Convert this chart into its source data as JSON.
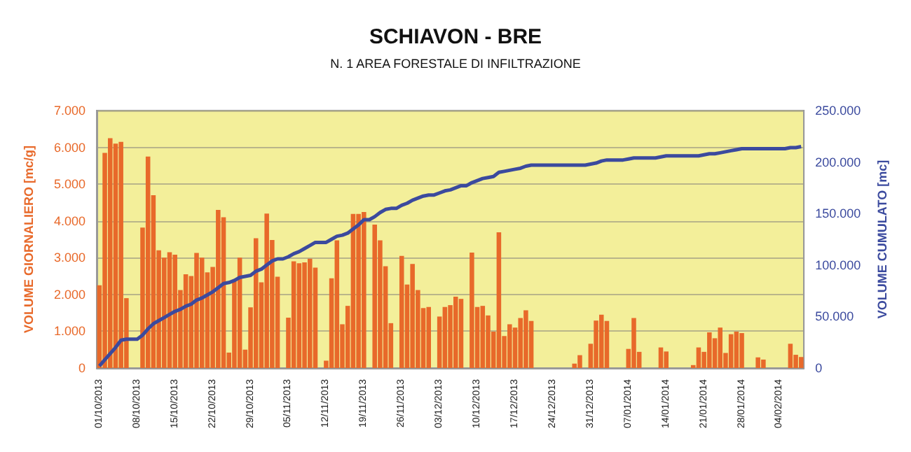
{
  "chart_data": {
    "type": "bar",
    "title": "SCHIAVON - BRE",
    "subtitle": "N. 1 AREA FORESTALE DI INFILTRAZIONE",
    "ylabel": "VOLUME GIORNALIERO [mc/g]",
    "y2label": "VOLUME CUMULATO [mc]",
    "categories": [
      "01/10/2013",
      null,
      null,
      null,
      null,
      null,
      null,
      "08/10/2013",
      null,
      null,
      null,
      null,
      null,
      null,
      "15/10/2013",
      null,
      null,
      null,
      null,
      null,
      null,
      "22/10/2013",
      null,
      null,
      null,
      null,
      null,
      null,
      "29/10/2013",
      null,
      null,
      null,
      null,
      null,
      null,
      "05/11/2013",
      null,
      null,
      null,
      null,
      null,
      null,
      "12/11/2013",
      null,
      null,
      null,
      null,
      null,
      null,
      "19/11/2013",
      null,
      null,
      null,
      null,
      null,
      null,
      "26/11/2013",
      null,
      null,
      null,
      null,
      null,
      null,
      "03/12/2013",
      null,
      null,
      null,
      null,
      null,
      null,
      "10/12/2013",
      null,
      null,
      null,
      null,
      null,
      null,
      "17/12/2013",
      null,
      null,
      null,
      null,
      null,
      null,
      "24/12/2013",
      null,
      null,
      null,
      null,
      null,
      null,
      "31/12/2013",
      null,
      null,
      null,
      null,
      null,
      null,
      "07/01/2014",
      null,
      null,
      null,
      null,
      null,
      null,
      "14/01/2014",
      null,
      null,
      null,
      null,
      null,
      null,
      "21/01/2014",
      null,
      null,
      null,
      null,
      null,
      null,
      "28/01/2014",
      null,
      null,
      null,
      null,
      null,
      null,
      "04/02/2014",
      null,
      null,
      null,
      null
    ],
    "series": [
      {
        "color": "#e8692a",
        "values": [
          2250,
          5850,
          6250,
          6100,
          6150,
          1900,
          0,
          0,
          3820,
          5750,
          4700,
          3200,
          3000,
          3150,
          3080,
          2120,
          2550,
          2500,
          3130,
          3000,
          2600,
          2750,
          4300,
          4100,
          420,
          2400,
          3000,
          500,
          1650,
          3530,
          2330,
          4200,
          3480,
          2480,
          0,
          1370,
          2900,
          2850,
          2870,
          2970,
          2730,
          0,
          200,
          2440,
          3470,
          1190,
          1690,
          4190,
          4190,
          4240,
          0,
          3900,
          3470,
          2770,
          1220,
          0,
          3050,
          2270,
          2830,
          2120,
          1630,
          1660,
          0,
          1400,
          1660,
          1710,
          1940,
          1880,
          0,
          3140,
          1660,
          1690,
          1430,
          990,
          3690,
          870,
          1190,
          1100,
          1360,
          1570,
          1280,
          0,
          0,
          0,
          0,
          0,
          0,
          0,
          120,
          350,
          0,
          660,
          1290,
          1450,
          1280,
          0,
          0,
          0,
          520,
          1360,
          440,
          0,
          0,
          0,
          560,
          450,
          0,
          0,
          0,
          0,
          80,
          560,
          440,
          970,
          810,
          1100,
          410,
          920,
          990,
          950,
          0,
          0,
          290,
          230,
          0,
          0,
          0,
          0,
          660,
          360,
          300
        ]
      },
      {
        "type": "line",
        "axis": "y2",
        "color": "#3b4a9e",
        "values": [
          2000,
          8000,
          14000,
          20000,
          27000,
          28000,
          28000,
          28000,
          32000,
          38000,
          43000,
          46000,
          49000,
          52000,
          55000,
          57000,
          60000,
          62000,
          66000,
          68000,
          71000,
          74000,
          78000,
          82000,
          83000,
          85000,
          88000,
          89000,
          90000,
          94000,
          96000,
          100000,
          104000,
          106000,
          106000,
          108000,
          111000,
          113000,
          116000,
          119000,
          122000,
          122000,
          122000,
          125000,
          128000,
          129000,
          131000,
          135000,
          139000,
          144000,
          144000,
          147000,
          151000,
          154000,
          155000,
          155000,
          158000,
          160000,
          163000,
          165000,
          167000,
          168000,
          168000,
          170000,
          172000,
          173000,
          175000,
          177000,
          177000,
          180000,
          182000,
          184000,
          185000,
          186000,
          190000,
          191000,
          192000,
          193000,
          194000,
          196000,
          197000,
          197000,
          197000,
          197000,
          197000,
          197000,
          197000,
          197000,
          197000,
          197000,
          197000,
          198000,
          199000,
          201000,
          202000,
          202000,
          202000,
          202000,
          203000,
          204000,
          204000,
          204000,
          204000,
          204000,
          205000,
          206000,
          206000,
          206000,
          206000,
          206000,
          206000,
          206000,
          207000,
          208000,
          208000,
          209000,
          210000,
          211000,
          212000,
          213000,
          213000,
          213000,
          213000,
          213000,
          213000,
          213000,
          213000,
          213000,
          214000,
          214000,
          215000
        ]
      }
    ],
    "ylim": [
      0,
      7000
    ],
    "yticks": [
      0,
      {
        "value": 1000,
        "label": "1.000"
      },
      {
        "value": 2000,
        "label": "2.000"
      },
      {
        "value": 3000,
        "label": "3.000"
      },
      {
        "value": 4000,
        "label": "4.000"
      },
      {
        "value": 5000,
        "label": "5.000"
      },
      {
        "value": 6000,
        "label": "6.000"
      },
      {
        "value": 7000,
        "label": "7.000"
      }
    ],
    "y2lim": [
      0,
      250000
    ],
    "y2ticks": [
      0,
      {
        "value": 50000,
        "label": "50.000"
      },
      {
        "value": 100000,
        "label": "100.000"
      },
      {
        "value": 150000,
        "label": "150.000"
      },
      {
        "value": 200000,
        "label": "200.000"
      },
      {
        "value": 250000,
        "label": "250.000"
      }
    ],
    "grid": "y",
    "marker": "none"
  }
}
